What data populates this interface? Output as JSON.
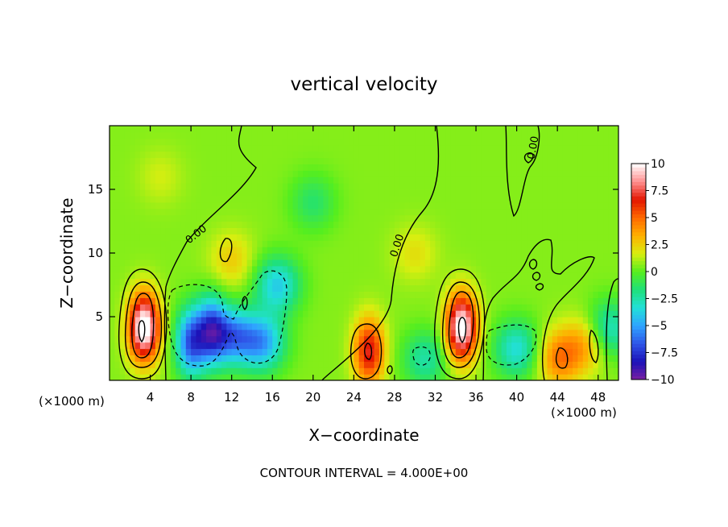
{
  "chart_data": {
    "type": "heatmap",
    "title": "vertical velocity",
    "xlabel": "X−coordinate",
    "ylabel": "Z−coordinate",
    "x_unit_left": "(×1000 m)",
    "x_unit_right": "(×1000 m)",
    "xlim": [
      0,
      50
    ],
    "ylim": [
      0,
      20
    ],
    "x_ticks": [
      4,
      8,
      12,
      16,
      20,
      24,
      28,
      32,
      36,
      40,
      44,
      48
    ],
    "x_tick_labels": [
      "4",
      "8",
      "12",
      "16",
      "20",
      "24",
      "28",
      "32",
      "36",
      "40",
      "44",
      "48"
    ],
    "y_ticks": [
      5,
      10,
      15
    ],
    "y_tick_labels": [
      "5",
      "10",
      "15"
    ],
    "colorbar": {
      "min": -10,
      "max": 10,
      "tick_values": [
        10,
        7.5,
        5,
        2.5,
        0,
        -2.5,
        -5,
        -7.5,
        -10
      ],
      "tick_labels": [
        "10",
        "7.5",
        "5",
        "2.5",
        "0",
        "−2.5",
        "−5",
        "−7.5",
        "−10"
      ],
      "colors": [
        "#7a1fa2",
        "#1c12b8",
        "#2f55e8",
        "#2fa4ff",
        "#22e0d8",
        "#1fe07a",
        "#56ee1e",
        "#d8ee10",
        "#ffb000",
        "#ff6a00",
        "#e31500",
        "#ff8f8f",
        "#ffffff"
      ]
    },
    "contour_labels": [
      "0.00",
      "0.00",
      "0.00"
    ],
    "contour_interval_text": "CONTOUR INTERVAL = 4.000E+00",
    "features": [
      {
        "x": 3.4,
        "z": 4.2,
        "w": 10.5,
        "note": "updraft"
      },
      {
        "x": 34.6,
        "z": 4.2,
        "w": 10,
        "note": "updraft"
      },
      {
        "x": 25.5,
        "z": 2.3,
        "w": 6.5,
        "note": "updraft"
      },
      {
        "x": 44.2,
        "z": 1.8,
        "w": 4
      },
      {
        "x": 47,
        "z": 3,
        "w": 3
      },
      {
        "x": 8,
        "z": 3,
        "w": -7
      },
      {
        "x": 10,
        "z": 4,
        "w": -6.5
      },
      {
        "x": 12,
        "z": 3.5,
        "w": -6
      },
      {
        "x": 15,
        "z": 3,
        "w": -5.5
      },
      {
        "x": 16.5,
        "z": 7.5,
        "w": -4.5
      },
      {
        "x": 40,
        "z": 2.5,
        "w": -4
      },
      {
        "x": 49,
        "z": 4,
        "w": -4
      },
      {
        "x": 31,
        "z": 1.7,
        "w": -3
      },
      {
        "x": 20,
        "z": 14,
        "w": -2
      },
      {
        "x": 12,
        "z": 9.5,
        "w": 2
      },
      {
        "x": 30,
        "z": 10,
        "w": 1.5
      },
      {
        "x": 5,
        "z": 16,
        "w": 1
      }
    ]
  }
}
